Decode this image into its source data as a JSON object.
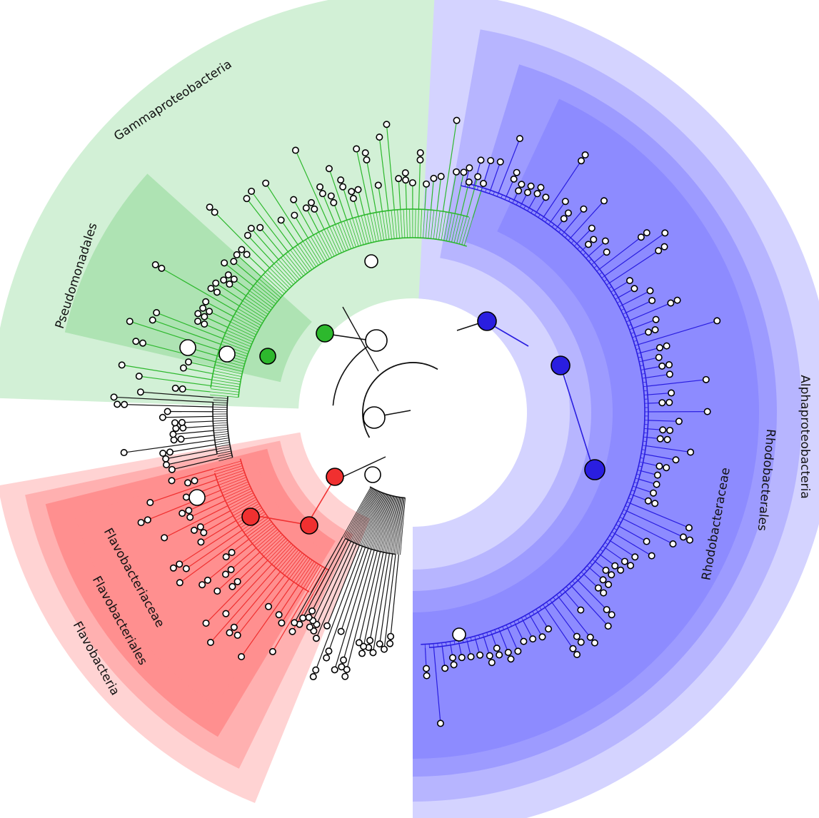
{
  "colors": {
    "green": "#2db82d",
    "red": "#f03030",
    "blue": "#2a1ee0",
    "black": "#111111",
    "green_band": "#d2f0d6",
    "green_band_inner": "#aee3b3",
    "red_band_1": "#ffd3d3",
    "red_band_2": "#ffb0b0",
    "red_band_3": "#ff8f8f",
    "blue_band_1": "#d4d3ff",
    "blue_band_2": "#b7b5ff",
    "blue_band_3": "#9d9bff",
    "blue_band_4": "#8d8bff"
  },
  "labels": {
    "gammaproteobacteria": "Gammaproteobacteria",
    "pseudomonadales": "Pseudomonadales",
    "alphaproteobacteria": "Alphaproteobacteria",
    "rhodobacterales": "Rhodobacterales",
    "rhodobacteraceae": "Rhodobacteraceae",
    "flavobacteriaceae": "Flavobacteriaceae",
    "flavobacteriales": "Flavobacteriales",
    "flavobacteria": "Flavobacteria"
  },
  "clades": [
    {
      "name": "Gammaproteobacteria",
      "color": "green",
      "highlighted": true
    },
    {
      "name": "Pseudomonadales",
      "color": "green",
      "highlighted": true
    },
    {
      "name": "Alphaproteobacteria",
      "color": "blue",
      "highlighted": true
    },
    {
      "name": "Rhodobacterales",
      "color": "blue",
      "highlighted": true
    },
    {
      "name": "Rhodobacteraceae",
      "color": "blue",
      "highlighted": true
    },
    {
      "name": "Flavobacteria",
      "color": "red",
      "highlighted": true
    },
    {
      "name": "Flavobacteriales",
      "color": "red",
      "highlighted": true
    },
    {
      "name": "Flavobacteriaceae",
      "color": "red",
      "highlighted": true
    }
  ]
}
